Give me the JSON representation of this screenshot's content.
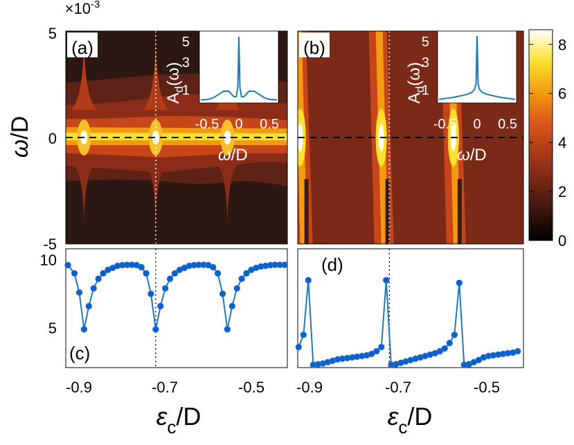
{
  "figure": {
    "scale_label": "×10",
    "scale_exponent": "-3",
    "colorbar": {
      "ticks": [
        "0",
        "2",
        "4",
        "6",
        "8"
      ],
      "range": [
        0,
        8.6
      ]
    },
    "x_ticks": [
      "-0.9",
      "-0.7",
      "-0.5"
    ]
  },
  "colors": {
    "series": "#1f77b4",
    "marker_fill": "#0b5ed7",
    "map_background_a": "#2c1712",
    "map_background_b": "#7a2a16",
    "colormap": [
      "#000000",
      "#4a1a10",
      "#9e3418",
      "#d9531a",
      "#f39a10",
      "#fbe030",
      "#ffffff"
    ]
  },
  "chart_data": [
    {
      "panel": "(a)",
      "type": "heatmap",
      "ylabel_symbol": "ω",
      "ylabel_unit": "/D",
      "y_ticks": [
        "5",
        "0",
        "-5"
      ],
      "y_range": [
        -5,
        5
      ],
      "x_range": [
        -0.93,
        -0.42
      ],
      "resonance_positions": [
        -0.888,
        -0.723,
        -0.558
      ],
      "marked_position": -0.723,
      "reference_line_y": 0,
      "inset": {
        "ylabel_main": "A",
        "ylabel_sub": "d",
        "ylabel_arg": "(ω)",
        "xlabel_symbol": "ω",
        "xlabel_unit": "/D",
        "y_ticks": [
          "1",
          "3",
          "5"
        ],
        "x_ticks": [
          "-0.5",
          "0",
          "0.5"
        ],
        "x_range": [
          -0.75,
          0.75
        ],
        "y_range": [
          0,
          6.3
        ],
        "curve": {
          "x": [
            -0.75,
            -0.6,
            -0.5,
            -0.4,
            -0.3,
            -0.2,
            -0.15,
            -0.1,
            -0.05,
            -0.02,
            0,
            0.02,
            0.05,
            0.1,
            0.15,
            0.2,
            0.3,
            0.4,
            0.5,
            0.6,
            0.75
          ],
          "y": [
            0.15,
            0.2,
            0.35,
            0.65,
            0.95,
            0.95,
            0.7,
            0.45,
            0.45,
            1.3,
            5.9,
            1.3,
            0.45,
            0.45,
            0.7,
            0.95,
            0.95,
            0.65,
            0.35,
            0.2,
            0.15
          ]
        }
      }
    },
    {
      "panel": "(b)",
      "type": "heatmap",
      "y_range": [
        -5,
        5
      ],
      "x_range": [
        -0.93,
        -0.42
      ],
      "bright_band_positions": [
        -0.918,
        -0.735,
        -0.572
      ],
      "marked_position": -0.723,
      "reference_line_y": 0,
      "inset": {
        "ylabel_main": "A",
        "ylabel_sub": "d",
        "ylabel_arg": "(ω)",
        "xlabel_symbol": "ω",
        "xlabel_unit": "/D",
        "y_ticks": [
          "1",
          "3",
          "5"
        ],
        "x_ticks": [
          "-0.5",
          "0",
          "0.5"
        ],
        "x_range": [
          -0.75,
          0.75
        ],
        "y_range": [
          0,
          6.3
        ],
        "curve": {
          "x": [
            -0.75,
            -0.6,
            -0.5,
            -0.4,
            -0.3,
            -0.2,
            -0.1,
            -0.05,
            -0.02,
            0,
            0.02,
            0.05,
            0.1,
            0.2,
            0.3,
            0.4,
            0.5,
            0.6,
            0.75
          ],
          "y": [
            0.2,
            0.3,
            0.35,
            0.45,
            0.55,
            0.65,
            0.85,
            1.1,
            1.6,
            6.0,
            1.6,
            1.1,
            0.85,
            0.65,
            0.55,
            0.45,
            0.35,
            0.3,
            0.2
          ]
        }
      }
    },
    {
      "panel": "(c)",
      "type": "line",
      "y_ticks": [
        "5",
        "10"
      ],
      "y_range": [
        2.1,
        10.8
      ],
      "x_range": [
        -0.93,
        -0.42
      ],
      "marked_position": -0.723,
      "x": [
        -0.925,
        -0.91,
        -0.899,
        -0.888,
        -0.877,
        -0.866,
        -0.855,
        -0.844,
        -0.833,
        -0.822,
        -0.811,
        -0.8,
        -0.789,
        -0.778,
        -0.767,
        -0.756,
        -0.745,
        -0.734,
        -0.723,
        -0.712,
        -0.701,
        -0.69,
        -0.679,
        -0.668,
        -0.657,
        -0.646,
        -0.635,
        -0.624,
        -0.613,
        -0.602,
        -0.591,
        -0.58,
        -0.569,
        -0.558,
        -0.547,
        -0.536,
        -0.525,
        -0.514,
        -0.503,
        -0.492,
        -0.481,
        -0.47,
        -0.459,
        -0.448,
        -0.437,
        -0.426
      ],
      "y": [
        9.6,
        9.0,
        7.6,
        4.9,
        6.6,
        7.9,
        8.6,
        9.0,
        9.25,
        9.4,
        9.55,
        9.6,
        9.62,
        9.62,
        9.6,
        9.45,
        9.0,
        7.5,
        4.9,
        6.6,
        7.9,
        8.6,
        9.0,
        9.25,
        9.4,
        9.55,
        9.6,
        9.62,
        9.62,
        9.6,
        9.45,
        9.0,
        7.5,
        4.9,
        6.6,
        7.9,
        8.6,
        9.0,
        9.25,
        9.4,
        9.5,
        9.55,
        9.6,
        9.62,
        9.62,
        9.62
      ]
    },
    {
      "panel": "(d)",
      "type": "line",
      "y_range": [
        2.1,
        10.8
      ],
      "x_range": [
        -0.93,
        -0.42
      ],
      "marked_position": -0.723,
      "x": [
        -0.928,
        -0.917,
        -0.906,
        -0.895,
        -0.884,
        -0.873,
        -0.862,
        -0.851,
        -0.84,
        -0.829,
        -0.818,
        -0.807,
        -0.796,
        -0.785,
        -0.774,
        -0.763,
        -0.752,
        -0.741,
        -0.73,
        -0.719,
        -0.708,
        -0.697,
        -0.686,
        -0.675,
        -0.664,
        -0.653,
        -0.642,
        -0.631,
        -0.62,
        -0.609,
        -0.598,
        -0.587,
        -0.576,
        -0.565,
        -0.554,
        -0.543,
        -0.532,
        -0.521,
        -0.51,
        -0.499,
        -0.488,
        -0.477,
        -0.466,
        -0.455,
        -0.444,
        -0.433
      ],
      "y": [
        3.6,
        4.5,
        8.5,
        2.3,
        2.35,
        2.4,
        2.5,
        2.6,
        2.7,
        2.75,
        2.8,
        2.85,
        2.9,
        2.95,
        3.0,
        3.1,
        3.3,
        3.6,
        8.5,
        2.3,
        2.35,
        2.45,
        2.55,
        2.65,
        2.75,
        2.85,
        2.95,
        3.05,
        3.15,
        3.3,
        3.5,
        3.9,
        4.5,
        8.3,
        2.3,
        2.35,
        2.5,
        2.65,
        2.85,
        2.95,
        3.0,
        3.05,
        3.1,
        3.15,
        3.2,
        3.3
      ]
    }
  ],
  "x_axis_label": {
    "symbol": "ε",
    "subscript": "c",
    "unit": "/D"
  }
}
